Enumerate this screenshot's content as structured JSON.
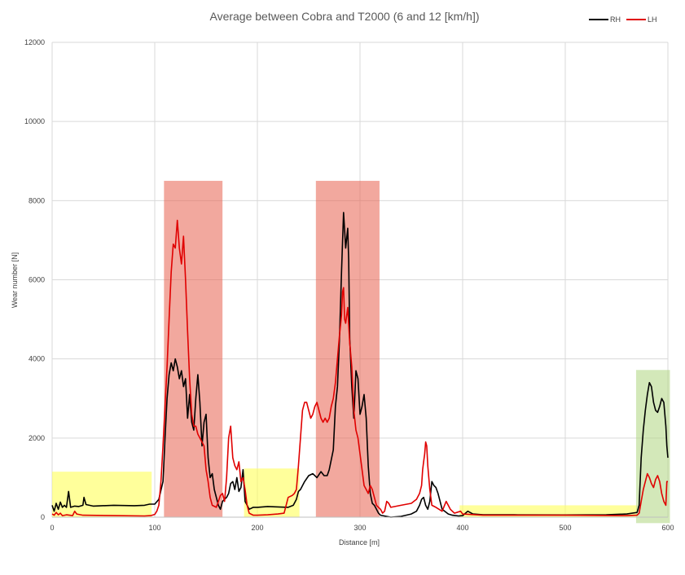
{
  "chart_data": {
    "type": "line",
    "title": "Average between Cobra and T2000 (6 and 12 [km/h])",
    "xlabel": "Distance [m]",
    "ylabel": "Wear number [N]",
    "xlim": [
      0,
      600
    ],
    "ylim": [
      0,
      12000
    ],
    "x_ticks": [
      0,
      100,
      200,
      300,
      400,
      500,
      600
    ],
    "y_ticks": [
      0,
      2000,
      4000,
      6000,
      8000,
      10000,
      12000
    ],
    "grid": true,
    "legend_position": "top-right",
    "series": [
      {
        "name": "RH",
        "color": "#000000",
        "points": [
          [
            0,
            300
          ],
          [
            2,
            150
          ],
          [
            4,
            350
          ],
          [
            6,
            200
          ],
          [
            8,
            380
          ],
          [
            10,
            250
          ],
          [
            12,
            300
          ],
          [
            14,
            250
          ],
          [
            16,
            650
          ],
          [
            18,
            250
          ],
          [
            22,
            280
          ],
          [
            26,
            270
          ],
          [
            30,
            300
          ],
          [
            31,
            500
          ],
          [
            33,
            320
          ],
          [
            40,
            280
          ],
          [
            60,
            300
          ],
          [
            80,
            290
          ],
          [
            90,
            300
          ],
          [
            95,
            330
          ],
          [
            100,
            330
          ],
          [
            104,
            450
          ],
          [
            108,
            900
          ],
          [
            110,
            2000
          ],
          [
            112,
            3000
          ],
          [
            114,
            3600
          ],
          [
            116,
            3900
          ],
          [
            118,
            3700
          ],
          [
            120,
            4000
          ],
          [
            122,
            3800
          ],
          [
            124,
            3500
          ],
          [
            126,
            3700
          ],
          [
            128,
            3300
          ],
          [
            130,
            3500
          ],
          [
            132,
            2500
          ],
          [
            134,
            3100
          ],
          [
            136,
            2400
          ],
          [
            138,
            2200
          ],
          [
            140,
            3000
          ],
          [
            142,
            3600
          ],
          [
            144,
            2900
          ],
          [
            146,
            1800
          ],
          [
            148,
            2400
          ],
          [
            150,
            2600
          ],
          [
            152,
            1500
          ],
          [
            154,
            1000
          ],
          [
            156,
            1100
          ],
          [
            158,
            700
          ],
          [
            160,
            500
          ],
          [
            162,
            300
          ],
          [
            164,
            200
          ],
          [
            166,
            400
          ],
          [
            168,
            450
          ],
          [
            170,
            500
          ],
          [
            172,
            600
          ],
          [
            174,
            850
          ],
          [
            176,
            900
          ],
          [
            178,
            700
          ],
          [
            180,
            1000
          ],
          [
            182,
            650
          ],
          [
            184,
            750
          ],
          [
            186,
            1200
          ],
          [
            188,
            400
          ],
          [
            190,
            300
          ],
          [
            192,
            200
          ],
          [
            196,
            250
          ],
          [
            200,
            250
          ],
          [
            210,
            270
          ],
          [
            220,
            260
          ],
          [
            230,
            250
          ],
          [
            235,
            300
          ],
          [
            238,
            450
          ],
          [
            240,
            650
          ],
          [
            242,
            700
          ],
          [
            246,
            900
          ],
          [
            250,
            1050
          ],
          [
            254,
            1100
          ],
          [
            258,
            1000
          ],
          [
            262,
            1150
          ],
          [
            265,
            1050
          ],
          [
            268,
            1050
          ],
          [
            270,
            1200
          ],
          [
            274,
            1700
          ],
          [
            276,
            2800
          ],
          [
            278,
            3300
          ],
          [
            280,
            4500
          ],
          [
            282,
            6200
          ],
          [
            284,
            7700
          ],
          [
            286,
            6800
          ],
          [
            288,
            7300
          ],
          [
            289,
            6500
          ],
          [
            290,
            4500
          ],
          [
            292,
            3300
          ],
          [
            294,
            2500
          ],
          [
            296,
            3700
          ],
          [
            298,
            3500
          ],
          [
            300,
            2600
          ],
          [
            302,
            2800
          ],
          [
            304,
            3100
          ],
          [
            306,
            2500
          ],
          [
            308,
            1300
          ],
          [
            310,
            600
          ],
          [
            312,
            350
          ],
          [
            314,
            300
          ],
          [
            316,
            200
          ],
          [
            318,
            100
          ],
          [
            320,
            50
          ],
          [
            330,
            0
          ],
          [
            340,
            20
          ],
          [
            350,
            80
          ],
          [
            355,
            150
          ],
          [
            358,
            300
          ],
          [
            360,
            450
          ],
          [
            362,
            500
          ],
          [
            364,
            300
          ],
          [
            366,
            200
          ],
          [
            368,
            400
          ],
          [
            370,
            900
          ],
          [
            372,
            800
          ],
          [
            374,
            750
          ],
          [
            376,
            600
          ],
          [
            378,
            400
          ],
          [
            380,
            200
          ],
          [
            386,
            80
          ],
          [
            390,
            50
          ],
          [
            396,
            30
          ],
          [
            400,
            40
          ],
          [
            405,
            150
          ],
          [
            410,
            80
          ],
          [
            420,
            60
          ],
          [
            450,
            60
          ],
          [
            500,
            55
          ],
          [
            540,
            60
          ],
          [
            560,
            80
          ],
          [
            570,
            120
          ],
          [
            572,
            300
          ],
          [
            574,
            1500
          ],
          [
            576,
            2200
          ],
          [
            578,
            2700
          ],
          [
            580,
            3100
          ],
          [
            582,
            3400
          ],
          [
            584,
            3300
          ],
          [
            586,
            2900
          ],
          [
            588,
            2700
          ],
          [
            590,
            2650
          ],
          [
            592,
            2800
          ],
          [
            594,
            3000
          ],
          [
            596,
            2900
          ],
          [
            598,
            2300
          ],
          [
            599,
            1800
          ],
          [
            600,
            1500
          ]
        ]
      },
      {
        "name": "LH",
        "color": "#e00000",
        "points": [
          [
            0,
            80
          ],
          [
            2,
            50
          ],
          [
            4,
            120
          ],
          [
            6,
            60
          ],
          [
            8,
            100
          ],
          [
            10,
            40
          ],
          [
            14,
            60
          ],
          [
            20,
            40
          ],
          [
            22,
            150
          ],
          [
            24,
            80
          ],
          [
            30,
            50
          ],
          [
            60,
            40
          ],
          [
            90,
            30
          ],
          [
            96,
            40
          ],
          [
            100,
            70
          ],
          [
            102,
            150
          ],
          [
            104,
            300
          ],
          [
            106,
            900
          ],
          [
            108,
            1800
          ],
          [
            110,
            2800
          ],
          [
            112,
            3800
          ],
          [
            114,
            5000
          ],
          [
            116,
            6200
          ],
          [
            118,
            6900
          ],
          [
            120,
            6800
          ],
          [
            122,
            7500
          ],
          [
            124,
            6800
          ],
          [
            126,
            6400
          ],
          [
            128,
            7100
          ],
          [
            130,
            6000
          ],
          [
            132,
            4700
          ],
          [
            134,
            3500
          ],
          [
            136,
            2600
          ],
          [
            138,
            2300
          ],
          [
            140,
            2300
          ],
          [
            142,
            2100
          ],
          [
            144,
            2000
          ],
          [
            146,
            1900
          ],
          [
            148,
            1800
          ],
          [
            150,
            1200
          ],
          [
            152,
            900
          ],
          [
            154,
            500
          ],
          [
            156,
            300
          ],
          [
            160,
            250
          ],
          [
            162,
            400
          ],
          [
            164,
            550
          ],
          [
            166,
            600
          ],
          [
            168,
            400
          ],
          [
            170,
            1000
          ],
          [
            172,
            2000
          ],
          [
            174,
            2300
          ],
          [
            176,
            1500
          ],
          [
            178,
            1300
          ],
          [
            180,
            1200
          ],
          [
            182,
            1400
          ],
          [
            184,
            900
          ],
          [
            186,
            1000
          ],
          [
            188,
            700
          ],
          [
            190,
            300
          ],
          [
            192,
            100
          ],
          [
            196,
            50
          ],
          [
            200,
            50
          ],
          [
            210,
            60
          ],
          [
            220,
            80
          ],
          [
            226,
            100
          ],
          [
            230,
            500
          ],
          [
            234,
            550
          ],
          [
            236,
            600
          ],
          [
            238,
            700
          ],
          [
            240,
            1300
          ],
          [
            242,
            2000
          ],
          [
            244,
            2700
          ],
          [
            246,
            2900
          ],
          [
            248,
            2900
          ],
          [
            250,
            2700
          ],
          [
            252,
            2500
          ],
          [
            254,
            2600
          ],
          [
            256,
            2800
          ],
          [
            258,
            2900
          ],
          [
            260,
            2700
          ],
          [
            262,
            2500
          ],
          [
            264,
            2400
          ],
          [
            266,
            2500
          ],
          [
            268,
            2400
          ],
          [
            270,
            2500
          ],
          [
            272,
            2800
          ],
          [
            274,
            3000
          ],
          [
            276,
            3400
          ],
          [
            278,
            4000
          ],
          [
            280,
            4600
          ],
          [
            282,
            5100
          ],
          [
            283,
            5700
          ],
          [
            284,
            5800
          ],
          [
            285,
            5000
          ],
          [
            286,
            4900
          ],
          [
            288,
            5300
          ],
          [
            290,
            4400
          ],
          [
            292,
            3800
          ],
          [
            294,
            2700
          ],
          [
            296,
            2200
          ],
          [
            298,
            2000
          ],
          [
            300,
            1600
          ],
          [
            302,
            1200
          ],
          [
            304,
            800
          ],
          [
            306,
            700
          ],
          [
            308,
            600
          ],
          [
            310,
            800
          ],
          [
            312,
            700
          ],
          [
            314,
            500
          ],
          [
            316,
            300
          ],
          [
            318,
            250
          ],
          [
            320,
            200
          ],
          [
            322,
            100
          ],
          [
            324,
            150
          ],
          [
            326,
            400
          ],
          [
            328,
            350
          ],
          [
            330,
            250
          ],
          [
            340,
            300
          ],
          [
            350,
            350
          ],
          [
            355,
            450
          ],
          [
            358,
            600
          ],
          [
            360,
            800
          ],
          [
            361,
            1200
          ],
          [
            362,
            1400
          ],
          [
            363,
            1600
          ],
          [
            364,
            1900
          ],
          [
            365,
            1800
          ],
          [
            366,
            1300
          ],
          [
            368,
            700
          ],
          [
            370,
            300
          ],
          [
            374,
            250
          ],
          [
            380,
            150
          ],
          [
            384,
            400
          ],
          [
            388,
            200
          ],
          [
            392,
            100
          ],
          [
            398,
            150
          ],
          [
            400,
            80
          ],
          [
            420,
            50
          ],
          [
            500,
            50
          ],
          [
            560,
            40
          ],
          [
            570,
            50
          ],
          [
            572,
            100
          ],
          [
            574,
            400
          ],
          [
            576,
            700
          ],
          [
            578,
            900
          ],
          [
            580,
            1100
          ],
          [
            582,
            1000
          ],
          [
            584,
            850
          ],
          [
            586,
            750
          ],
          [
            588,
            950
          ],
          [
            590,
            1050
          ],
          [
            592,
            900
          ],
          [
            594,
            600
          ],
          [
            596,
            400
          ],
          [
            598,
            300
          ],
          [
            599,
            900
          ],
          [
            600,
            900
          ]
        ]
      }
    ],
    "highlight_regions": [
      {
        "x": [
          0,
          97
        ],
        "y": [
          0,
          1150
        ],
        "color": "#ffff66",
        "opacity": 0.65
      },
      {
        "x": [
          109,
          166
        ],
        "y": [
          0,
          8500
        ],
        "color": "#e8604f",
        "opacity": 0.55
      },
      {
        "x": [
          187,
          241
        ],
        "y": [
          0,
          1230
        ],
        "color": "#ffff66",
        "opacity": 0.65
      },
      {
        "x": [
          257,
          319
        ],
        "y": [
          0,
          8500
        ],
        "color": "#e8604f",
        "opacity": 0.55
      },
      {
        "x": [
          397,
          570
        ],
        "y": [
          0,
          300
        ],
        "color": "#ffff66",
        "opacity": 0.65
      },
      {
        "x": [
          569,
          602
        ],
        "y": [
          -150,
          3720
        ],
        "color": "#b5d98a",
        "opacity": 0.6
      }
    ]
  }
}
